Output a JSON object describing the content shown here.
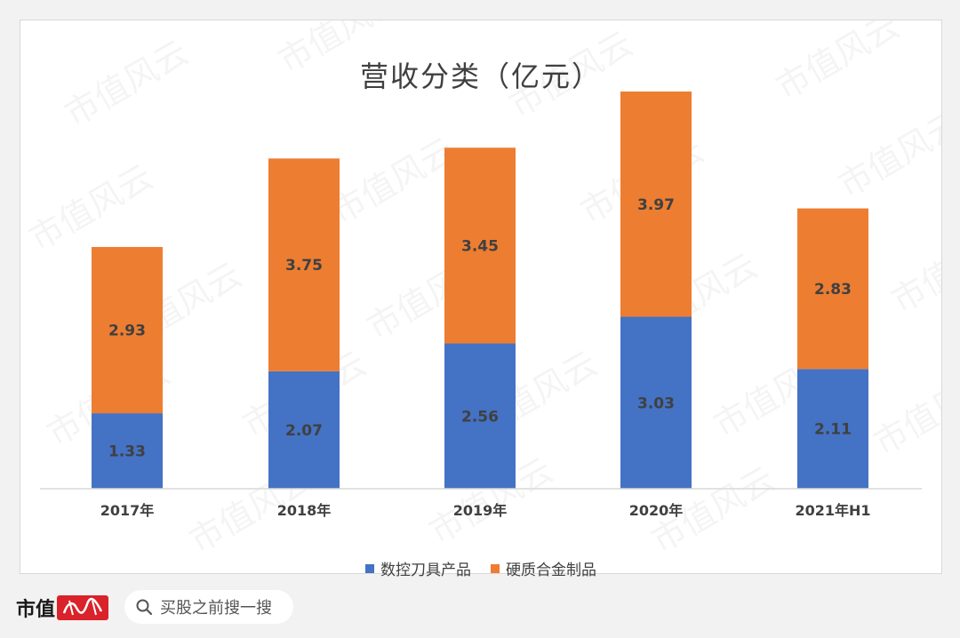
{
  "chart_data": {
    "type": "bar",
    "stacked": true,
    "title": "营收分类（亿元）",
    "categories": [
      "2017年",
      "2018年",
      "2019年",
      "2020年",
      "2021年H1"
    ],
    "series": [
      {
        "name": "数控刀具产品",
        "values": [
          1.33,
          2.07,
          2.56,
          3.03,
          2.11
        ],
        "color": "#4472c4"
      },
      {
        "name": "硬质合金制品",
        "values": [
          2.93,
          3.75,
          3.45,
          3.97,
          2.83
        ],
        "color": "#ed7d31"
      }
    ],
    "ylim": [
      0,
      7
    ],
    "grid": false,
    "legend_position": "bottom",
    "data_labels": true
  },
  "watermark": "市值风云",
  "footer": {
    "brand_text": "市值",
    "brand_logo_text": "风云",
    "search_icon": "search-icon",
    "search_text": "买股之前搜一搜"
  }
}
